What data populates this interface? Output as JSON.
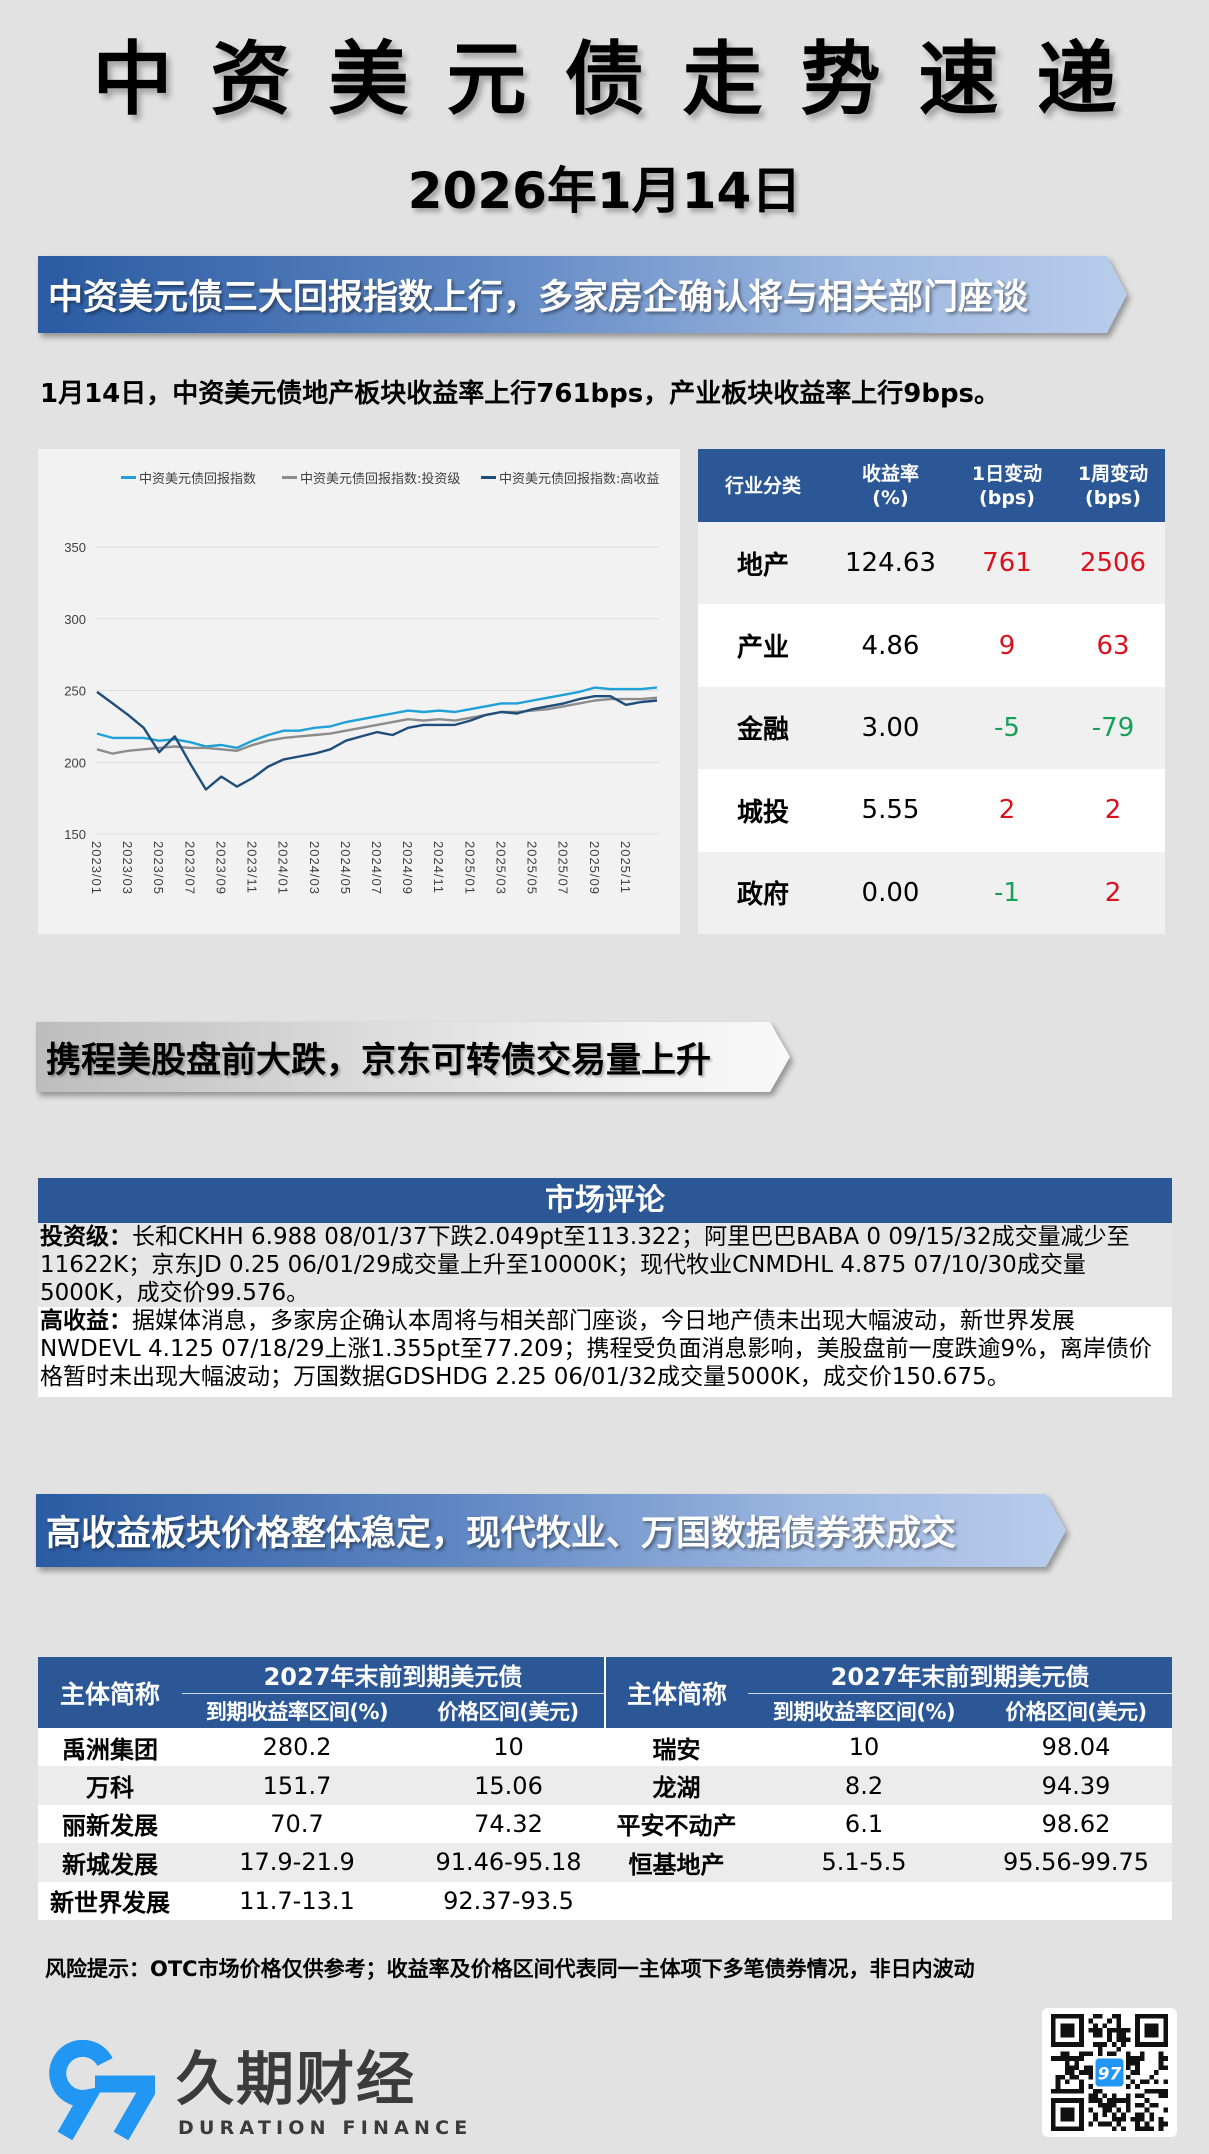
{
  "header": {
    "title": "中资美元债走势速递",
    "date": "2026年1月14日"
  },
  "section1": {
    "banner": "中资美元债三大回报指数上行，多家房企确认将与相关部门座谈",
    "summary": "1月14日，中资美元债地产板块收益率上行761bps，产业板块收益率上行9bps。",
    "sector_table": {
      "headers": [
        {
          "line1": "行业分类",
          "line2": ""
        },
        {
          "line1": "收益率",
          "line2": "(%)"
        },
        {
          "line1": "1日变动",
          "line2": "(bps)"
        },
        {
          "line1": "1周变动",
          "line2": "(bps)"
        }
      ],
      "rows": [
        {
          "sector": "地产",
          "yield": "124.63",
          "d1": "761",
          "d1_trend": "up",
          "w1": "2506",
          "w1_trend": "up"
        },
        {
          "sector": "产业",
          "yield": "4.86",
          "d1": "9",
          "d1_trend": "up",
          "w1": "63",
          "w1_trend": "up"
        },
        {
          "sector": "金融",
          "yield": "3.00",
          "d1": "-5",
          "d1_trend": "down",
          "w1": "-79",
          "w1_trend": "down"
        },
        {
          "sector": "城投",
          "yield": "5.55",
          "d1": "2",
          "d1_trend": "up",
          "w1": "2",
          "w1_trend": "up"
        },
        {
          "sector": "政府",
          "yield": "0.00",
          "d1": "-1",
          "d1_trend": "down",
          "w1": "2",
          "w1_trend": "up"
        }
      ]
    }
  },
  "chart_data": {
    "type": "line",
    "title": "",
    "xlabel": "",
    "ylabel": "",
    "ylim": [
      150,
      350
    ],
    "yticks": [
      150,
      200,
      250,
      300,
      350
    ],
    "grid": true,
    "legend_position": "top",
    "xticks": [
      "2023/01",
      "2023/03",
      "2023/05",
      "2023/07",
      "2023/09",
      "2023/11",
      "2024/01",
      "2024/03",
      "2024/05",
      "2024/07",
      "2024/09",
      "2024/11",
      "2025/01",
      "2025/03",
      "2025/05",
      "2025/07",
      "2025/09",
      "2025/11"
    ],
    "x": [
      "2023/01",
      "2023/02",
      "2023/03",
      "2023/04",
      "2023/05",
      "2023/06",
      "2023/07",
      "2023/08",
      "2023/09",
      "2023/10",
      "2023/11",
      "2023/12",
      "2024/01",
      "2024/02",
      "2024/03",
      "2024/04",
      "2024/05",
      "2024/06",
      "2024/07",
      "2024/08",
      "2024/09",
      "2024/10",
      "2024/11",
      "2024/12",
      "2025/01",
      "2025/02",
      "2025/03",
      "2025/04",
      "2025/05",
      "2025/06",
      "2025/07",
      "2025/08",
      "2025/09",
      "2025/10",
      "2025/11",
      "2025/12",
      "2026/01"
    ],
    "series": [
      {
        "name": "中资美元债回报指数",
        "color": "#1fa0d6",
        "values": [
          220,
          217,
          217,
          217,
          215,
          216,
          214,
          211,
          212,
          210,
          215,
          219,
          222,
          222,
          224,
          225,
          228,
          230,
          232,
          234,
          236,
          235,
          236,
          235,
          237,
          239,
          241,
          241,
          243,
          245,
          247,
          249,
          252,
          251,
          251,
          251,
          252
        ]
      },
      {
        "name": "中资美元债回报指数:投资级",
        "color": "#8c8c8c",
        "values": [
          209,
          206,
          208,
          209,
          210,
          211,
          210,
          210,
          209,
          208,
          212,
          215,
          217,
          218,
          219,
          220,
          222,
          224,
          226,
          228,
          230,
          229,
          230,
          229,
          231,
          233,
          235,
          235,
          236,
          237,
          239,
          241,
          243,
          244,
          244,
          244,
          245
        ]
      },
      {
        "name": "中资美元债回报指数:高收益",
        "color": "#1f4e7a",
        "values": [
          249,
          241,
          233,
          224,
          207,
          218,
          199,
          181,
          190,
          183,
          189,
          197,
          202,
          204,
          206,
          209,
          215,
          218,
          221,
          219,
          224,
          226,
          226,
          226,
          229,
          233,
          235,
          234,
          237,
          239,
          241,
          244,
          246,
          246,
          240,
          242,
          243
        ]
      }
    ]
  },
  "section2": {
    "banner": "携程美股盘前大跌，京东可转债交易量上升",
    "commentary": {
      "title": "市场评论",
      "blocks": [
        {
          "label": "投资级：",
          "text": "长和CKHH 6.988 08/01/37下跌2.049pt至113.322；阿里巴巴BABA 0 09/15/32成交量减少至11622K；京东JD 0.25 06/01/29成交量上升至10000K；现代牧业CNMDHL 4.875 07/10/30成交量5000K，成交价99.576。"
        },
        {
          "label": "高收益：",
          "text": "据媒体消息，多家房企确认本周将与相关部门座谈，今日地产债未出现大幅波动，新世界发展NWDEVL 4.125 07/18/29上涨1.355pt至77.209；携程受负面消息影响，美股盘前一度跌逾9%，离岸债价格暂时未出现大幅波动；万国数据GDSHDG 2.25 06/01/32成交量5000K，成交价150.675。"
        }
      ]
    }
  },
  "section3": {
    "banner": "高收益板块价格整体稳定，现代牧业、万国数据债券获成交",
    "bond_table": {
      "col_name": "主体简称",
      "group_header": "2027年末前到期美元债",
      "col_yield": "到期收益率区间(%)",
      "col_price": "价格区间(美元)",
      "left": [
        {
          "name": "禹洲集团",
          "yield": "280.2",
          "price": "10"
        },
        {
          "name": "万科",
          "yield": "151.7",
          "price": "15.06"
        },
        {
          "name": "丽新发展",
          "yield": "70.7",
          "price": "74.32"
        },
        {
          "name": "新城发展",
          "yield": "17.9-21.9",
          "price": "91.46-95.18"
        },
        {
          "name": "新世界发展",
          "yield": "11.7-13.1",
          "price": "92.37-93.5"
        }
      ],
      "right": [
        {
          "name": "瑞安",
          "yield": "10",
          "price": "98.04"
        },
        {
          "name": "龙湖",
          "yield": "8.2",
          "price": "94.39"
        },
        {
          "name": "平安不动产",
          "yield": "6.1",
          "price": "98.62"
        },
        {
          "name": "恒基地产",
          "yield": "5.1-5.5",
          "price": "95.56-99.75"
        }
      ]
    },
    "risk_note": "风险提示：OTC市场价格仅供参考；收益率及价格区间代表同一主体项下多笔债券情况，非日内波动"
  },
  "footer": {
    "logo_mark": "97",
    "brand_cn": "久期财经",
    "brand_en": "DURATION FINANCE",
    "qr_icon": "qr-code-icon"
  },
  "colors": {
    "brand_blue": "#2b5797",
    "logo_blue": "#2196f3",
    "up_red": "#d9121f",
    "down_green": "#17a05a"
  }
}
